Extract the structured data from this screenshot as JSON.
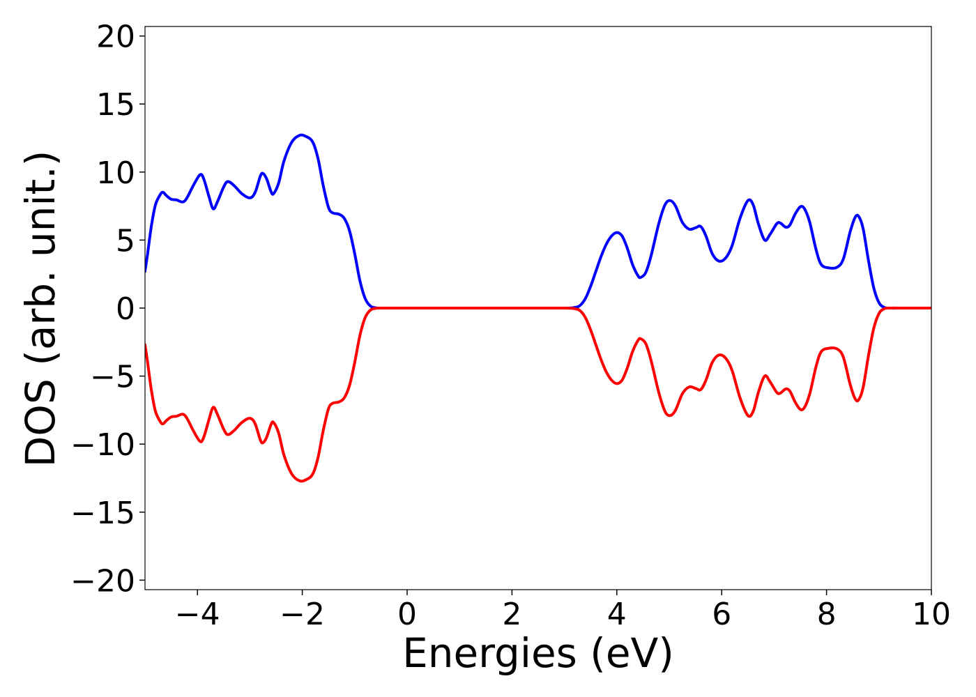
{
  "chart_data": {
    "type": "line",
    "title": "",
    "xlabel": "Energies (eV)",
    "ylabel": "DOS (arb. unit.)",
    "xlim": [
      -5,
      10
    ],
    "ylim": [
      -20.7,
      20.7
    ],
    "x_ticks": [
      -4,
      -2,
      0,
      2,
      4,
      6,
      8,
      10
    ],
    "x_tick_labels": [
      "−4",
      "−2",
      "0",
      "2",
      "4",
      "6",
      "8",
      "10"
    ],
    "y_ticks": [
      -20,
      -15,
      -10,
      -5,
      0,
      5,
      10,
      15,
      20
    ],
    "y_tick_labels": [
      "−20",
      "−15",
      "−10",
      "−5",
      "0",
      "5",
      "10",
      "15",
      "20"
    ],
    "grid": false,
    "legend": "none",
    "series": [
      {
        "color": "#0000ff",
        "points": [
          [
            -5.0,
            2.7
          ],
          [
            -4.95,
            4.0
          ],
          [
            -4.88,
            6.0
          ],
          [
            -4.8,
            7.6
          ],
          [
            -4.7,
            8.4
          ],
          [
            -4.65,
            8.5
          ],
          [
            -4.6,
            8.3
          ],
          [
            -4.5,
            8.0
          ],
          [
            -4.4,
            7.95
          ],
          [
            -4.28,
            7.8
          ],
          [
            -4.2,
            8.1
          ],
          [
            -4.08,
            9.0
          ],
          [
            -3.95,
            9.8
          ],
          [
            -3.88,
            9.5
          ],
          [
            -3.78,
            8.2
          ],
          [
            -3.7,
            7.3
          ],
          [
            -3.62,
            7.8
          ],
          [
            -3.5,
            8.9
          ],
          [
            -3.42,
            9.3
          ],
          [
            -3.3,
            9.0
          ],
          [
            -3.15,
            8.4
          ],
          [
            -3.0,
            8.1
          ],
          [
            -2.9,
            8.5
          ],
          [
            -2.8,
            9.7
          ],
          [
            -2.75,
            9.9
          ],
          [
            -2.68,
            9.5
          ],
          [
            -2.6,
            8.6
          ],
          [
            -2.55,
            8.4
          ],
          [
            -2.45,
            9.2
          ],
          [
            -2.35,
            10.8
          ],
          [
            -2.2,
            12.2
          ],
          [
            -2.05,
            12.7
          ],
          [
            -1.92,
            12.6
          ],
          [
            -1.8,
            12.2
          ],
          [
            -1.7,
            11.0
          ],
          [
            -1.6,
            9.0
          ],
          [
            -1.5,
            7.4
          ],
          [
            -1.42,
            7.0
          ],
          [
            -1.3,
            6.9
          ],
          [
            -1.2,
            6.6
          ],
          [
            -1.1,
            5.7
          ],
          [
            -1.0,
            4.0
          ],
          [
            -0.9,
            2.0
          ],
          [
            -0.8,
            0.7
          ],
          [
            -0.7,
            0.15
          ],
          [
            -0.6,
            0.02
          ],
          [
            -0.5,
            0.0
          ],
          [
            0.0,
            0.0
          ],
          [
            1.0,
            0.0
          ],
          [
            2.0,
            0.0
          ],
          [
            3.0,
            0.0
          ],
          [
            3.2,
            0.05
          ],
          [
            3.3,
            0.2
          ],
          [
            3.4,
            0.7
          ],
          [
            3.5,
            1.6
          ],
          [
            3.6,
            2.7
          ],
          [
            3.7,
            3.8
          ],
          [
            3.8,
            4.7
          ],
          [
            3.9,
            5.3
          ],
          [
            4.0,
            5.55
          ],
          [
            4.1,
            5.3
          ],
          [
            4.2,
            4.4
          ],
          [
            4.3,
            3.2
          ],
          [
            4.4,
            2.4
          ],
          [
            4.45,
            2.25
          ],
          [
            4.55,
            2.6
          ],
          [
            4.65,
            3.8
          ],
          [
            4.8,
            6.2
          ],
          [
            4.92,
            7.6
          ],
          [
            5.02,
            7.9
          ],
          [
            5.12,
            7.5
          ],
          [
            5.25,
            6.3
          ],
          [
            5.38,
            5.8
          ],
          [
            5.5,
            5.9
          ],
          [
            5.6,
            6.0
          ],
          [
            5.7,
            5.3
          ],
          [
            5.82,
            4.0
          ],
          [
            5.95,
            3.45
          ],
          [
            6.08,
            3.7
          ],
          [
            6.2,
            4.6
          ],
          [
            6.35,
            6.6
          ],
          [
            6.5,
            7.9
          ],
          [
            6.6,
            7.6
          ],
          [
            6.7,
            6.2
          ],
          [
            6.82,
            5.0
          ],
          [
            6.92,
            5.4
          ],
          [
            7.05,
            6.2
          ],
          [
            7.12,
            6.25
          ],
          [
            7.22,
            5.95
          ],
          [
            7.3,
            6.1
          ],
          [
            7.4,
            6.9
          ],
          [
            7.5,
            7.45
          ],
          [
            7.58,
            7.3
          ],
          [
            7.68,
            6.3
          ],
          [
            7.8,
            4.3
          ],
          [
            7.9,
            3.2
          ],
          [
            8.05,
            2.95
          ],
          [
            8.2,
            3.0
          ],
          [
            8.32,
            3.6
          ],
          [
            8.45,
            5.6
          ],
          [
            8.55,
            6.7
          ],
          [
            8.62,
            6.7
          ],
          [
            8.7,
            5.8
          ],
          [
            8.8,
            3.5
          ],
          [
            8.9,
            1.5
          ],
          [
            9.0,
            0.4
          ],
          [
            9.1,
            0.05
          ],
          [
            9.2,
            0.0
          ],
          [
            9.5,
            0.0
          ],
          [
            10.0,
            0.0
          ]
        ]
      },
      {
        "color": "#ff0000",
        "points": [
          [
            -5.0,
            -2.7
          ],
          [
            -4.95,
            -4.0
          ],
          [
            -4.88,
            -6.0
          ],
          [
            -4.8,
            -7.6
          ],
          [
            -4.7,
            -8.4
          ],
          [
            -4.65,
            -8.5
          ],
          [
            -4.6,
            -8.3
          ],
          [
            -4.5,
            -8.0
          ],
          [
            -4.4,
            -7.95
          ],
          [
            -4.28,
            -7.8
          ],
          [
            -4.2,
            -8.1
          ],
          [
            -4.08,
            -9.0
          ],
          [
            -3.95,
            -9.8
          ],
          [
            -3.88,
            -9.5
          ],
          [
            -3.78,
            -8.2
          ],
          [
            -3.7,
            -7.3
          ],
          [
            -3.62,
            -7.8
          ],
          [
            -3.5,
            -8.9
          ],
          [
            -3.42,
            -9.3
          ],
          [
            -3.3,
            -9.0
          ],
          [
            -3.15,
            -8.4
          ],
          [
            -3.0,
            -8.1
          ],
          [
            -2.9,
            -8.5
          ],
          [
            -2.8,
            -9.7
          ],
          [
            -2.75,
            -9.9
          ],
          [
            -2.68,
            -9.5
          ],
          [
            -2.6,
            -8.6
          ],
          [
            -2.55,
            -8.4
          ],
          [
            -2.45,
            -9.2
          ],
          [
            -2.35,
            -10.8
          ],
          [
            -2.2,
            -12.2
          ],
          [
            -2.05,
            -12.7
          ],
          [
            -1.92,
            -12.6
          ],
          [
            -1.8,
            -12.2
          ],
          [
            -1.7,
            -11.0
          ],
          [
            -1.6,
            -9.0
          ],
          [
            -1.5,
            -7.4
          ],
          [
            -1.42,
            -7.0
          ],
          [
            -1.3,
            -6.9
          ],
          [
            -1.2,
            -6.6
          ],
          [
            -1.1,
            -5.7
          ],
          [
            -1.0,
            -4.0
          ],
          [
            -0.9,
            -2.0
          ],
          [
            -0.8,
            -0.7
          ],
          [
            -0.7,
            -0.15
          ],
          [
            -0.6,
            -0.02
          ],
          [
            -0.5,
            0.0
          ],
          [
            0.0,
            0.0
          ],
          [
            1.0,
            0.0
          ],
          [
            2.0,
            0.0
          ],
          [
            3.0,
            0.0
          ],
          [
            3.2,
            -0.05
          ],
          [
            3.3,
            -0.2
          ],
          [
            3.4,
            -0.7
          ],
          [
            3.5,
            -1.6
          ],
          [
            3.6,
            -2.7
          ],
          [
            3.7,
            -3.8
          ],
          [
            3.8,
            -4.7
          ],
          [
            3.9,
            -5.3
          ],
          [
            4.0,
            -5.55
          ],
          [
            4.1,
            -5.3
          ],
          [
            4.2,
            -4.4
          ],
          [
            4.3,
            -3.2
          ],
          [
            4.4,
            -2.4
          ],
          [
            4.45,
            -2.25
          ],
          [
            4.55,
            -2.6
          ],
          [
            4.65,
            -3.8
          ],
          [
            4.8,
            -6.2
          ],
          [
            4.92,
            -7.6
          ],
          [
            5.02,
            -7.9
          ],
          [
            5.12,
            -7.5
          ],
          [
            5.25,
            -6.3
          ],
          [
            5.38,
            -5.8
          ],
          [
            5.5,
            -5.9
          ],
          [
            5.6,
            -6.0
          ],
          [
            5.7,
            -5.3
          ],
          [
            5.82,
            -4.0
          ],
          [
            5.95,
            -3.45
          ],
          [
            6.08,
            -3.7
          ],
          [
            6.2,
            -4.6
          ],
          [
            6.35,
            -6.6
          ],
          [
            6.5,
            -7.9
          ],
          [
            6.6,
            -7.6
          ],
          [
            6.7,
            -6.2
          ],
          [
            6.82,
            -5.0
          ],
          [
            6.92,
            -5.4
          ],
          [
            7.05,
            -6.2
          ],
          [
            7.12,
            -6.25
          ],
          [
            7.22,
            -5.95
          ],
          [
            7.3,
            -6.1
          ],
          [
            7.4,
            -6.9
          ],
          [
            7.5,
            -7.45
          ],
          [
            7.58,
            -7.3
          ],
          [
            7.68,
            -6.3
          ],
          [
            7.8,
            -4.3
          ],
          [
            7.9,
            -3.2
          ],
          [
            8.05,
            -2.95
          ],
          [
            8.2,
            -3.0
          ],
          [
            8.32,
            -3.6
          ],
          [
            8.45,
            -5.6
          ],
          [
            8.55,
            -6.7
          ],
          [
            8.62,
            -6.7
          ],
          [
            8.7,
            -5.8
          ],
          [
            8.8,
            -3.5
          ],
          [
            8.9,
            -1.5
          ],
          [
            9.0,
            -0.4
          ],
          [
            9.1,
            -0.05
          ],
          [
            9.2,
            0.0
          ],
          [
            9.5,
            0.0
          ],
          [
            10.0,
            0.0
          ]
        ]
      }
    ]
  }
}
